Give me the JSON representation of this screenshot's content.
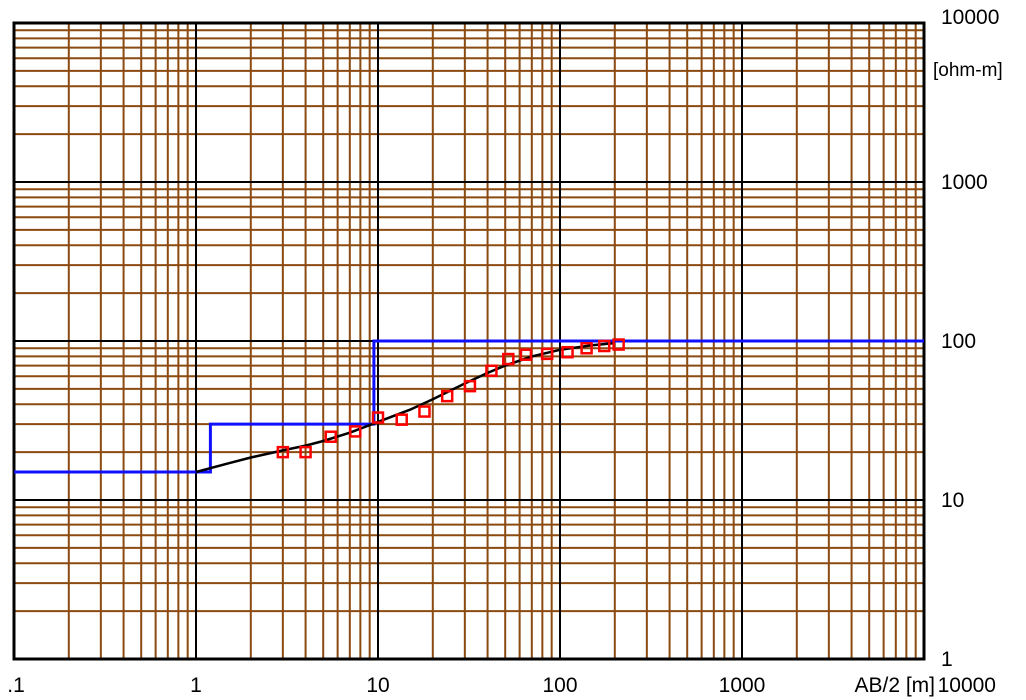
{
  "chart_data": {
    "type": "line",
    "x_scale": "log",
    "y_scale": "log",
    "xlim": [
      0.1,
      10000
    ],
    "ylim": [
      1,
      10000
    ],
    "grid": true,
    "x_ticks": [
      ".1",
      "1",
      "10",
      "100",
      "1000",
      "10000"
    ],
    "y_ticks": [
      "1",
      "10",
      "100",
      "1000",
      "10000"
    ],
    "xlabel": "AB/2 [m]",
    "ylabel": "[ohm-m]",
    "colors": {
      "minor_grid": "#8b4a0f",
      "major_grid": "#000000",
      "model": "#1010ff",
      "fit": "#000000",
      "observed": "#ff0000"
    },
    "series": [
      {
        "style": "step",
        "x": [
          0.1,
          1.2,
          1.2,
          9.5,
          9.5,
          10000
        ],
        "y": [
          15,
          15,
          30,
          30,
          100,
          100
        ]
      },
      {
        "style": "line",
        "x": [
          1.0,
          1.5,
          2.0,
          3.0,
          4.0,
          5.0,
          7.0,
          10,
          15,
          20,
          30,
          40,
          50,
          70,
          100,
          150,
          200
        ],
        "y": [
          15,
          17,
          18.5,
          20.5,
          22,
          23.5,
          26.5,
          31,
          37,
          43,
          54,
          63,
          70,
          80,
          88,
          94,
          97
        ]
      },
      {
        "style": "markers",
        "x": [
          3,
          4,
          5.5,
          7.5,
          10,
          13.5,
          18,
          24,
          32,
          42,
          52,
          65,
          85,
          110,
          140,
          175,
          210
        ],
        "y": [
          20,
          20,
          25,
          27,
          33,
          32,
          36,
          45,
          52,
          65,
          77,
          82,
          83,
          85,
          90,
          93,
          95
        ]
      }
    ]
  }
}
